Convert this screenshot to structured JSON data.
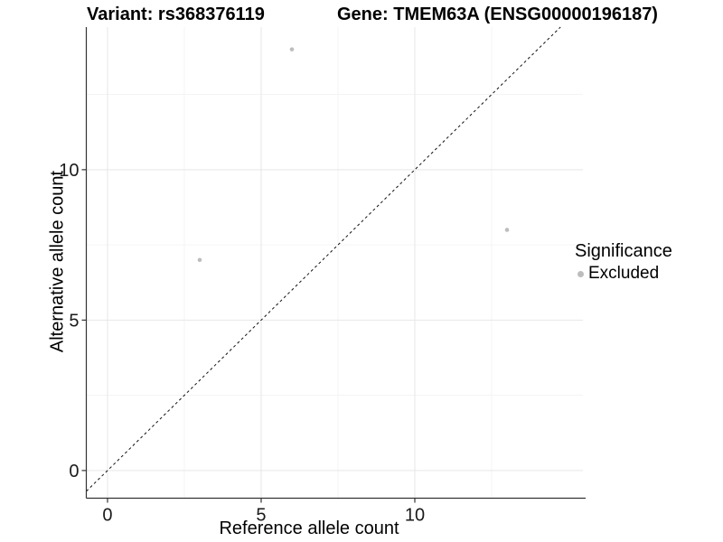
{
  "chart_data": {
    "type": "scatter",
    "titles": {
      "left": "Variant: rs368376119",
      "right": "Gene: TMEM63A (ENSG00000196187)"
    },
    "xlabel": "Reference allele count",
    "ylabel": "Alternative allele count",
    "xlim": [
      -0.69,
      15.47
    ],
    "ylim": [
      -0.92,
      14.74
    ],
    "x_ticks": {
      "major": [
        0,
        5,
        10
      ],
      "minor": [
        2.5,
        7.5,
        12.5
      ]
    },
    "y_ticks": {
      "major": [
        0,
        5,
        10
      ],
      "minor": [
        2.5,
        7.5,
        12.5
      ]
    },
    "grid": true,
    "reference_line": {
      "type": "identity",
      "style": "dashed",
      "color": "#111111"
    },
    "series": [
      {
        "name": "Excluded",
        "color": "#bdbdbd",
        "points": [
          [
            6,
            14
          ],
          [
            3,
            7
          ],
          [
            13,
            8
          ]
        ]
      }
    ],
    "legend": {
      "title": "Significance",
      "position": "right",
      "items": [
        {
          "label": "Excluded",
          "color": "#bdbdbd"
        }
      ]
    },
    "colors": {
      "grid_major": "#e7e7e7",
      "grid_minor": "#f3f3f3",
      "axis": "#333333",
      "tick_text": "#1a1a1a",
      "point": "#bdbdbd"
    }
  }
}
